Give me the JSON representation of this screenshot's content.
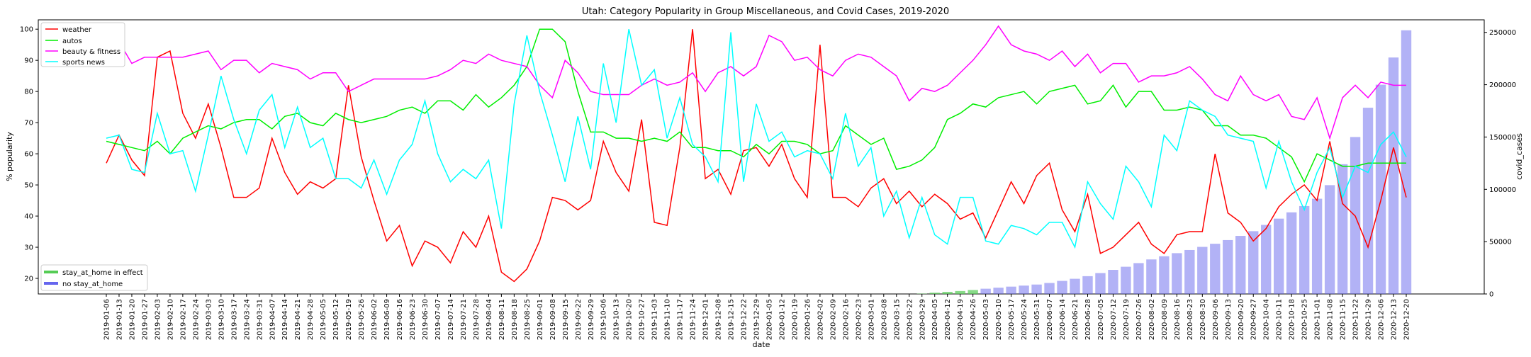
{
  "chart_data": {
    "type": "line",
    "title": "Utah: Category Popularity in Group Miscellaneous, and Covid Cases, 2019-2020",
    "xlabel": "date",
    "ylabel": "% popularity",
    "y2label": "covid_cases",
    "ylim": [
      15,
      103
    ],
    "y2lim": [
      0,
      262000
    ],
    "yticks": [
      20,
      30,
      40,
      50,
      60,
      70,
      80,
      90,
      100
    ],
    "y2ticks": [
      0,
      50000,
      100000,
      150000,
      200000,
      250000
    ],
    "x": [
      "2019-01-06",
      "2019-01-13",
      "2019-01-20",
      "2019-01-27",
      "2019-02-03",
      "2019-02-10",
      "2019-02-17",
      "2019-02-24",
      "2019-03-03",
      "2019-03-10",
      "2019-03-17",
      "2019-03-24",
      "2019-03-31",
      "2019-04-07",
      "2019-04-14",
      "2019-04-21",
      "2019-04-28",
      "2019-05-05",
      "2019-05-12",
      "2019-05-19",
      "2019-05-26",
      "2019-06-02",
      "2019-06-09",
      "2019-06-16",
      "2019-06-23",
      "2019-06-30",
      "2019-07-07",
      "2019-07-14",
      "2019-07-21",
      "2019-07-28",
      "2019-08-04",
      "2019-08-11",
      "2019-08-18",
      "2019-08-25",
      "2019-09-01",
      "2019-09-08",
      "2019-09-15",
      "2019-09-22",
      "2019-09-29",
      "2019-10-06",
      "2019-10-13",
      "2019-10-20",
      "2019-10-27",
      "2019-11-03",
      "2019-11-10",
      "2019-11-17",
      "2019-11-24",
      "2019-12-01",
      "2019-12-08",
      "2019-12-15",
      "2019-12-22",
      "2019-12-29",
      "2020-01-05",
      "2020-01-12",
      "2020-01-19",
      "2020-01-26",
      "2020-02-02",
      "2020-02-09",
      "2020-02-16",
      "2020-02-23",
      "2020-03-01",
      "2020-03-08",
      "2020-03-15",
      "2020-03-22",
      "2020-03-29",
      "2020-04-05",
      "2020-04-12",
      "2020-04-19",
      "2020-04-26",
      "2020-05-03",
      "2020-05-10",
      "2020-05-17",
      "2020-05-24",
      "2020-05-31",
      "2020-06-07",
      "2020-06-14",
      "2020-06-21",
      "2020-06-28",
      "2020-07-05",
      "2020-07-12",
      "2020-07-19",
      "2020-07-26",
      "2020-08-02",
      "2020-08-09",
      "2020-08-16",
      "2020-08-23",
      "2020-08-30",
      "2020-09-06",
      "2020-09-13",
      "2020-09-20",
      "2020-09-27",
      "2020-10-04",
      "2020-10-11",
      "2020-10-18",
      "2020-10-25",
      "2020-11-01",
      "2020-11-08",
      "2020-11-15",
      "2020-11-22",
      "2020-11-29",
      "2020-12-06",
      "2020-12-13",
      "2020-12-20"
    ],
    "series": [
      {
        "name": "weather",
        "color": "#ff0000",
        "values": [
          57,
          66,
          58,
          53,
          91,
          93,
          73,
          65,
          76,
          62,
          46,
          46,
          49,
          65,
          54,
          47,
          51,
          49,
          52,
          82,
          59,
          45,
          32,
          37,
          24,
          32,
          30,
          25,
          35,
          30,
          40,
          22,
          19,
          23,
          32,
          46,
          45,
          42,
          45,
          64,
          54,
          48,
          71,
          38,
          37,
          62,
          100,
          52,
          55,
          47,
          61,
          62,
          56,
          63,
          52,
          46,
          95,
          46,
          46,
          43,
          49,
          52,
          44,
          48,
          43,
          47,
          44,
          39,
          41,
          33,
          42,
          51,
          44,
          53,
          57,
          42,
          35,
          47,
          28,
          30,
          34,
          38,
          31,
          28,
          34,
          35,
          35,
          60,
          41,
          38,
          32,
          36,
          43,
          47,
          50,
          45,
          64,
          44,
          40,
          30,
          45,
          62,
          46
        ]
      },
      {
        "name": "autos",
        "color": "#00ee00",
        "values": [
          64,
          63,
          62,
          61,
          64,
          60,
          65,
          67,
          69,
          68,
          70,
          71,
          71,
          68,
          72,
          73,
          70,
          69,
          73,
          71,
          70,
          71,
          72,
          74,
          75,
          73,
          77,
          77,
          74,
          79,
          75,
          78,
          82,
          88,
          100,
          100,
          96,
          80,
          67,
          67,
          65,
          65,
          64,
          65,
          64,
          67,
          62,
          62,
          61,
          61,
          59,
          63,
          60,
          64,
          64,
          63,
          60,
          61,
          69,
          66,
          63,
          65,
          55,
          56,
          58,
          62,
          71,
          73,
          76,
          75,
          78,
          79,
          80,
          76,
          80,
          81,
          82,
          76,
          77,
          82,
          75,
          80,
          80,
          74,
          74,
          75,
          74,
          69,
          69,
          66,
          66,
          65,
          62,
          59,
          51,
          60,
          58,
          56,
          56,
          57,
          57,
          57,
          57
        ]
      },
      {
        "name": "beauty & fitness",
        "color": "#ff00ff",
        "values": [
          96,
          96,
          89,
          91,
          91,
          91,
          91,
          92,
          93,
          87,
          90,
          90,
          86,
          89,
          88,
          87,
          84,
          86,
          86,
          80,
          82,
          84,
          84,
          84,
          84,
          84,
          85,
          87,
          90,
          89,
          92,
          90,
          89,
          88,
          82,
          78,
          90,
          86,
          80,
          79,
          79,
          79,
          82,
          84,
          82,
          83,
          86,
          80,
          86,
          88,
          85,
          88,
          98,
          96,
          90,
          91,
          87,
          85,
          90,
          92,
          91,
          88,
          85,
          77,
          81,
          80,
          82,
          86,
          90,
          95,
          101,
          95,
          93,
          92,
          90,
          93,
          88,
          92,
          86,
          89,
          89,
          83,
          85,
          85,
          86,
          88,
          84,
          79,
          77,
          85,
          79,
          77,
          79,
          72,
          71,
          78,
          65,
          78,
          82,
          78,
          83,
          82,
          82
        ]
      },
      {
        "name": "sports news",
        "color": "#00ffff",
        "values": [
          65,
          66,
          55,
          54,
          73,
          60,
          61,
          48,
          66,
          85,
          71,
          60,
          74,
          79,
          62,
          75,
          62,
          65,
          52,
          52,
          49,
          58,
          47,
          58,
          63,
          77,
          60,
          51,
          55,
          52,
          58,
          36,
          76,
          98,
          80,
          66,
          51,
          72,
          55,
          89,
          70,
          100,
          82,
          87,
          65,
          78,
          63,
          59,
          51,
          99,
          51,
          76,
          64,
          67,
          59,
          61,
          60,
          52,
          73,
          56,
          62,
          40,
          48,
          33,
          46,
          34,
          31,
          46,
          46,
          32,
          31,
          37,
          36,
          34,
          38,
          38,
          30,
          51,
          44,
          39,
          56,
          51,
          43,
          66,
          61,
          77,
          74,
          72,
          66,
          65,
          64,
          49,
          64,
          51,
          42,
          54,
          62,
          46,
          56,
          54,
          63,
          67,
          59
        ]
      }
    ],
    "bars": {
      "stay_at_home": {
        "name": "stay_at_home in effect",
        "color": "#55cc55",
        "values": [
          0,
          0,
          0,
          0,
          0,
          0,
          0,
          0,
          0,
          0,
          0,
          0,
          0,
          0,
          0,
          0,
          0,
          0,
          0,
          0,
          0,
          0,
          0,
          0,
          0,
          0,
          0,
          0,
          0,
          0,
          0,
          0,
          0,
          0,
          0,
          0,
          0,
          0,
          0,
          0,
          0,
          0,
          0,
          0,
          0,
          0,
          0,
          0,
          0,
          0,
          0,
          0,
          0,
          0,
          0,
          0,
          0,
          0,
          0,
          0,
          0,
          0,
          0,
          0,
          300,
          1200,
          2000,
          2800,
          3800,
          0,
          0,
          0,
          0,
          0,
          0,
          0,
          0,
          0,
          0,
          0,
          0,
          0,
          0,
          0,
          0,
          0,
          0,
          0,
          0,
          0,
          0,
          0,
          0,
          0,
          0,
          0,
          0,
          0,
          0,
          0,
          0,
          0,
          0
        ]
      },
      "no_stay_at_home": {
        "name": "no stay_at_home",
        "color": "#6666ee",
        "values": [
          0,
          0,
          0,
          0,
          0,
          0,
          0,
          0,
          0,
          0,
          0,
          0,
          0,
          0,
          0,
          0,
          0,
          0,
          0,
          0,
          0,
          0,
          0,
          0,
          0,
          0,
          0,
          0,
          0,
          0,
          0,
          0,
          0,
          0,
          0,
          0,
          0,
          0,
          0,
          0,
          0,
          0,
          0,
          0,
          0,
          0,
          0,
          0,
          0,
          0,
          0,
          0,
          0,
          0,
          0,
          0,
          0,
          0,
          0,
          0,
          0,
          0,
          0,
          0,
          0,
          0,
          0,
          0,
          0,
          5000,
          6000,
          7000,
          8000,
          9000,
          10500,
          12500,
          14500,
          17000,
          20000,
          23000,
          26000,
          29500,
          33000,
          36000,
          39000,
          42000,
          45000,
          48000,
          51500,
          55500,
          60000,
          66000,
          72000,
          78000,
          84000,
          91000,
          104000,
          124000,
          150000,
          178000,
          200000,
          226000,
          252000
        ]
      }
    },
    "legend_placement_lines": "top-left",
    "legend_placement_bars": "bottom-left",
    "grid": false
  }
}
